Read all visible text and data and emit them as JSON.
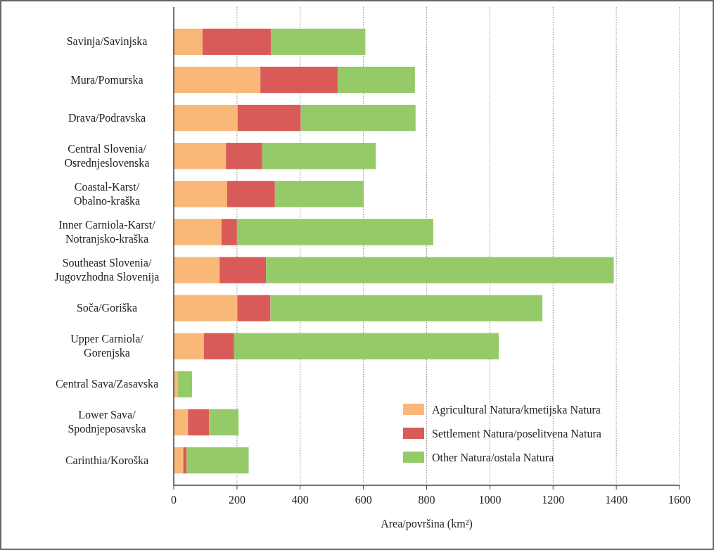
{
  "chart_data": {
    "type": "bar",
    "orientation": "horizontal",
    "stacked": true,
    "xlabel": "Area/površina (km²)",
    "categories": [
      "Savinja/Savinjska",
      "Mura/Pomurska",
      "Drava/Podravska",
      "Central Slovenia/Osrednjeslovenska",
      "Coastal-Karst/Obalno-kraška",
      "Inner Carniola-Karst/Notranjsko-kraška",
      "Southeast Slovenia/Jugovzhodna Slovenija",
      "Soča/Goriška",
      "Upper Carniola/Gorenjska",
      "Central Sava/Zasavska",
      "Lower Sava/Spodnjeposavska",
      "Carinthia/Koroška"
    ],
    "series": [
      {
        "name": "Agricultural Natura/kmetijska Natura",
        "color": "#fab878",
        "values": [
          91,
          274,
          202,
          165,
          169,
          151,
          145,
          201,
          95,
          12,
          45,
          30
        ]
      },
      {
        "name": "Settlement Natura/poselitvena Natura",
        "color": "#d95b59",
        "values": [
          216,
          245,
          200,
          115,
          151,
          49,
          147,
          105,
          96,
          0,
          67,
          11
        ]
      },
      {
        "name": "Other Natura/ostala Natura",
        "color": "#95ca69",
        "values": [
          299,
          244,
          363,
          359,
          281,
          621,
          1100,
          860,
          837,
          46,
          93,
          196
        ]
      }
    ],
    "xlim": [
      0,
      1600
    ],
    "xticks": [
      0,
      200,
      400,
      600,
      800,
      1000,
      1200,
      1400,
      1600
    ],
    "grid": "x",
    "legend": "bottom right"
  }
}
